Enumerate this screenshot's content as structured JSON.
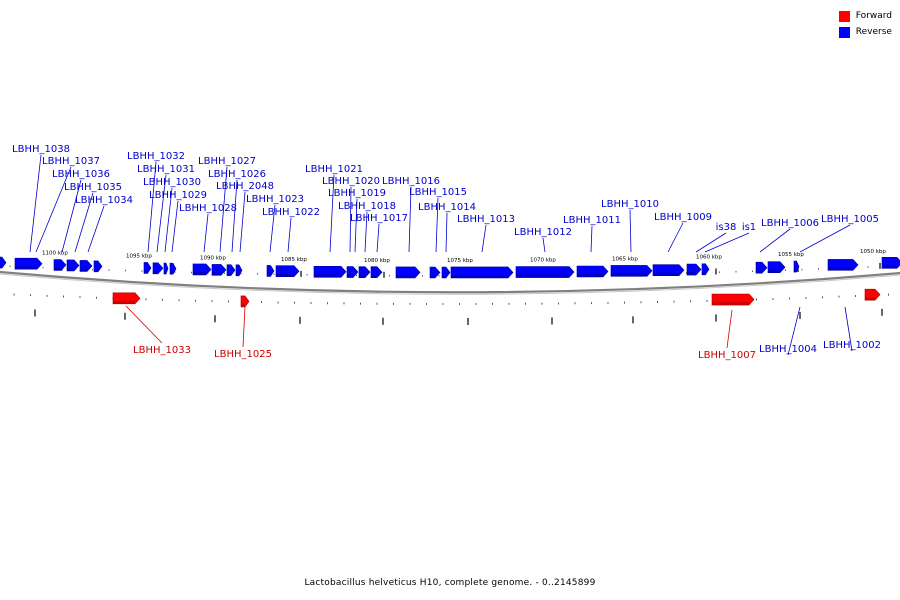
{
  "legend": {
    "items": [
      {
        "label": "Forward",
        "color": "#ff0000"
      },
      {
        "label": "Reverse",
        "color": "#0000ff"
      }
    ]
  },
  "caption": "Lactobacillus helveticus H10, complete genome. - 0..2145899",
  "scale_ticks": [
    "1100 kbp",
    "1095 kbp",
    "1090 kbp",
    "1085 kbp",
    "1080 kbp",
    "1075 kbp",
    "1070 kbp",
    "1065 kbp",
    "1060 kbp",
    "1055 kbp",
    "1050 kbp"
  ],
  "genes_reverse": [
    "LBHH_1038",
    "LBHH_1037",
    "LBHH_1036",
    "LBHH_1035",
    "LBHH_1034",
    "LBHH_1032",
    "LBHH_1031",
    "LBHH_1030",
    "LBHH_1029",
    "LBHH_1028",
    "LBHH_1027",
    "LBHH_1026",
    "LBHH_2048",
    "LBHH_1023",
    "LBHH_1022",
    "LBHH_1021",
    "LBHH_1020",
    "LBHH_1019",
    "LBHH_1018",
    "LBHH_1017",
    "LBHH_1016",
    "LBHH_1015",
    "LBHH_1014",
    "LBHH_1013",
    "LBHH_1012",
    "LBHH_1011",
    "LBHH_1010",
    "LBHH_1009",
    "is38",
    "is1",
    "LBHH_1006",
    "LBHH_1005",
    "LBHH_1004",
    "LBHH_1002"
  ],
  "genes_forward": [
    "LBHH_1033",
    "LBHH_1025",
    "LBHH_1007"
  ],
  "colors": {
    "forward": "#ff0000",
    "reverse": "#0000ff",
    "backbone": "#808080"
  }
}
